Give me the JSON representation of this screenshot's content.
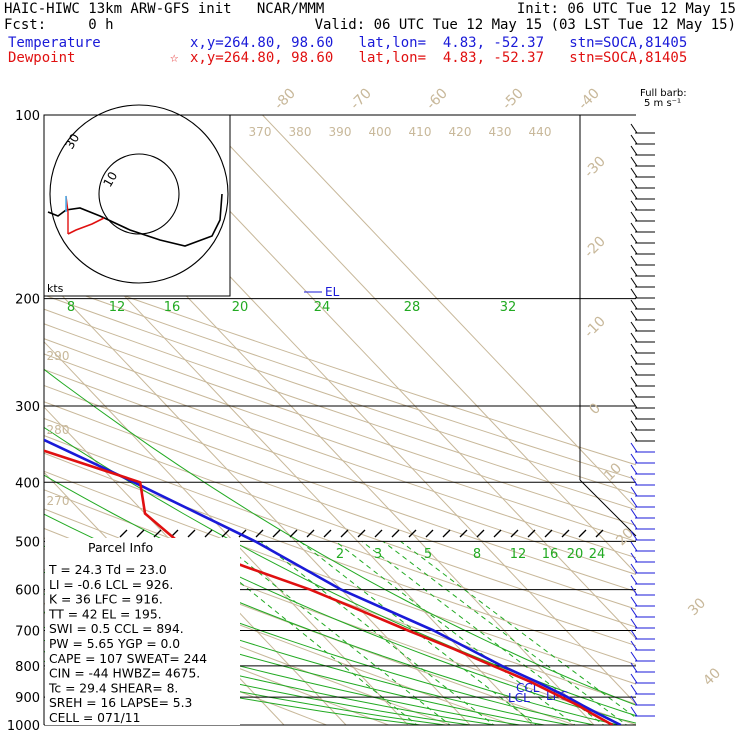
{
  "header": {
    "left_line1": "HAIC-HIWC 13km ARW-GFS init   NCAR/MMM",
    "left_line2": "Fcst:     0 h",
    "right_line1": "Init: 06 UTC Tue 12 May 15",
    "right_line2": "Valid: 06 UTC Tue 12 May 15 (03 LST Tue 12 May 15)"
  },
  "legend": {
    "temperature": {
      "label": "Temperature",
      "info": "x,y=264.80, 98.60   lat,lon=  4.83, -52.37   stn=SOCA,81405",
      "color": "#1a1ad8"
    },
    "dewpoint": {
      "label": "Dewpoint",
      "marker": "☆",
      "info": "x,y=264.80, 98.60   lat,lon=  4.83, -52.37   stn=SOCA,81405",
      "color": "#e01010"
    }
  },
  "colors": {
    "temperature": "#1a1ad8",
    "dewpoint": "#e01010",
    "mixing_ratio": "#22aa22",
    "isotherm": "#c8b89a",
    "isobar": "#000000"
  },
  "chart_data": {
    "type": "line",
    "title": "",
    "pressure_levels": [
      100,
      200,
      300,
      400,
      500,
      600,
      700,
      800,
      900,
      1000
    ],
    "pressure_labels": [
      "100",
      "200",
      "300",
      "400",
      "500",
      "600",
      "700",
      "800",
      "900",
      "1000"
    ],
    "temp_ticks_top": [
      "-80",
      "-70",
      "-60",
      "-50",
      "-40"
    ],
    "temp_ticks_right": [
      "-30",
      "-20",
      "-10",
      "0",
      "10",
      "20",
      "30",
      "40"
    ],
    "theta_labels": [
      "370",
      "380",
      "390",
      "400",
      "410",
      "420",
      "430",
      "440"
    ],
    "theta_left_labels": [
      "290",
      "280",
      "270"
    ],
    "mixing_ratio_labels_upper": [
      "8",
      "12",
      "16",
      "20",
      "24",
      "28",
      "32"
    ],
    "mixing_ratio_labels_lower": [
      "2",
      "3",
      "5",
      "8",
      "12",
      "16",
      "20",
      "24"
    ],
    "series": [
      {
        "name": "Temperature",
        "points_p": [
          1000,
          960,
          930,
          900,
          850,
          800,
          700,
          600,
          500,
          400,
          300,
          250,
          200,
          150,
          100
        ],
        "points_t": [
          24.3,
          22.5,
          21.2,
          20.0,
          17.4,
          14.2,
          8.6,
          0.0,
          -6.5,
          -17.0,
          -31.5,
          -41.5,
          -53.5,
          -67.0,
          -80.0
        ]
      },
      {
        "name": "Dewpoint",
        "points_p": [
          1000,
          960,
          930,
          900,
          850,
          800,
          750,
          700,
          650,
          600,
          550,
          500,
          450,
          400,
          350,
          300,
          250,
          200,
          150,
          100
        ],
        "points_t": [
          23.0,
          21.5,
          20.5,
          19.0,
          16.4,
          12.8,
          9.0,
          4.5,
          0.0,
          -5.0,
          -12.0,
          -19.0,
          -20.0,
          -16.0,
          -28.0,
          -39.0,
          -43.0,
          -59.0,
          -80.0,
          -92.0
        ]
      }
    ],
    "annotations": [
      "EL",
      "LCL",
      "CCL",
      "LFC"
    ],
    "hodograph": {
      "label_ring_outer": "30",
      "label_ring_inner": "10",
      "units": "kts"
    },
    "wind_barb_label": "Full barb:",
    "wind_barb_units": "5 m s⁻¹",
    "parcel_info": {
      "title": "Parcel Info",
      "rows": [
        "T  =    24.3  Td =  23.0",
        "LI =    -0.6  LCL =  926.",
        "K  =      36  LFC =  916.",
        "TT =      42  EL  =  195.",
        "SWI =    0.5  CCL =  894.",
        "PW =    5.65  YGP =   0.0",
        "CAPE =   107  SWEAT=  244",
        "CIN =    -44  HWBZ= 4675.",
        "Tc =    29.4  SHEAR=   8.",
        "SREH =    16  LAPSE=  5.3",
        "CELL = 071/11"
      ]
    }
  }
}
